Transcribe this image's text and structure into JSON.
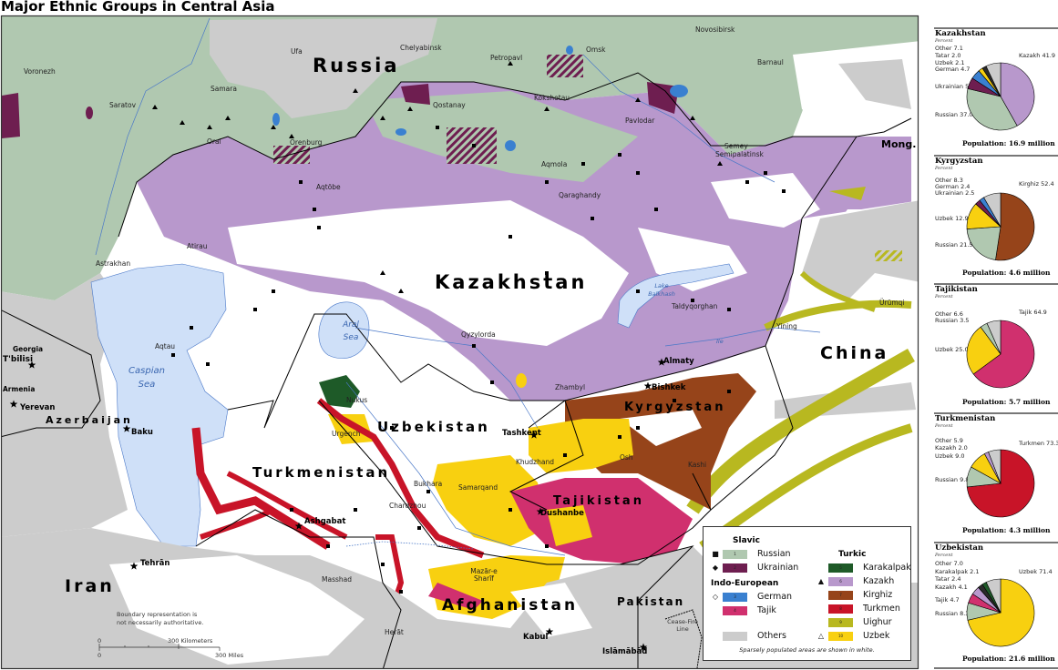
{
  "title": "Major Ethnic Groups in Central Asia",
  "colors": {
    "russian": "#b0c8b0",
    "ukrainian": "#6e1e50",
    "german": "#3a80d0",
    "tajik": "#d0306e",
    "karakalpak": "#1e5a28",
    "kazakh": "#b898cc",
    "kirghiz": "#96441a",
    "turkmen": "#c81428",
    "uighur": "#b8b820",
    "uzbek": "#f8d010",
    "others": "#cccccc",
    "tatar": "#2a2a2a",
    "water": "#cfe0f8",
    "river": "#4a78c8"
  },
  "map": {
    "countries": {
      "russia": "Russia",
      "kazakhstan": "Kazakhstan",
      "uzbekistan": "Uzbekistan",
      "turkmenistan": "Turkmenistan",
      "tajikistan": "Tajikistan",
      "kyrgyzstan": "Kyrgyzstan",
      "afghanistan": "Afghanistan",
      "china": "China",
      "iran": "Iran",
      "pakistan": "Pakistan",
      "mongolia": "Mong.",
      "azerbaijan": "Azerbaijan",
      "georgia": "Georgia",
      "armenia": "Armenia"
    },
    "cities": {
      "voronezh": "Voronezh",
      "saratov": "Saratov",
      "samara": "Samara",
      "ufa": "Ufa",
      "chelyabinsk": "Chelyabinsk",
      "novosibirsk": "Novosibirsk",
      "barnaul": "Barnaul",
      "omsk": "Omsk",
      "petropavl": "Petropavl",
      "kokshetau": "Kökshetau",
      "qostanay": "Qostanay",
      "pavlodar": "Pavlodar",
      "aqmola": "Aqmola",
      "semey": "Semey",
      "semipalatinsk": "Semipalatinsk",
      "qaraghandy": "Qaraghandy",
      "oral": "Oral",
      "orenburg": "Orenburg",
      "aqtobe": "Aqtöbe",
      "atirau": "Atirau",
      "astrakhan": "Astrakhan",
      "aqtau": "Aqtau",
      "qyzylorda": "Qyzylorda",
      "zhambyl": "Zhambyl",
      "taldyqorghan": "Taldyqorghan",
      "yining": "Yining",
      "urumqi": "Ürümqi",
      "khudzhand": "Khudzhand",
      "osh": "Osh",
      "kashi": "Kashi",
      "nukus": "Nukus",
      "urgench": "Urgench",
      "bukhara": "Bukhara",
      "samarqand": "Samarqand",
      "chardzhou": "Chardzhou",
      "mashhad": "Masshad",
      "herat": "Herāt",
      "mazar": "Mazār-e Sharīf"
    },
    "capitals": {
      "almaty": "Almaty",
      "bishkek": "Bishkek",
      "tashkent": "Tashkent",
      "dushanbe": "Dushanbe",
      "ashgabat": "Ashgabat",
      "tehran": "Tehrān",
      "kabul": "Kabul",
      "islamabad": "Islāmābād",
      "baku": "Baku",
      "yerevan": "Yerevan",
      "tbilisi": "T'bilisi"
    },
    "water": {
      "caspian": "Caspian Sea",
      "aral": "Aral Sea",
      "balkhash": "Lake Balkhash",
      "ile": "Ile"
    },
    "notes": {
      "boundary_1": "Boundary representation is",
      "boundary_2": "not necessarily authoritative.",
      "ceasefire_1": "Cease-Fire",
      "ceasefire_2": "Line"
    },
    "scale": {
      "zero": "0",
      "km": "300 Kilometers",
      "miles": "300 Miles"
    }
  },
  "legend": {
    "slavic": "Slavic",
    "indo_european": "Indo-European",
    "turkic": "Turkic",
    "items": [
      {
        "num": "1",
        "label": "Russian",
        "key": "russian",
        "marker": "■"
      },
      {
        "num": "2",
        "label": "Ukrainian",
        "key": "ukrainian",
        "marker": "◆"
      },
      {
        "num": "3",
        "label": "German",
        "key": "german",
        "marker": "◇"
      },
      {
        "num": "4",
        "label": "Tajik",
        "key": "tajik",
        "marker": ""
      },
      {
        "num": "",
        "label": "Others",
        "key": "others",
        "marker": ""
      },
      {
        "num": "5",
        "label": "Karakalpak",
        "key": "karakalpak",
        "marker": ""
      },
      {
        "num": "6",
        "label": "Kazakh",
        "key": "kazakh",
        "marker": "▲"
      },
      {
        "num": "7",
        "label": "Kirghiz",
        "key": "kirghiz",
        "marker": ""
      },
      {
        "num": "8",
        "label": "Turkmen",
        "key": "turkmen",
        "marker": ""
      },
      {
        "num": "9",
        "label": "Uighur",
        "key": "uighur",
        "marker": ""
      },
      {
        "num": "10",
        "label": "Uzbek",
        "key": "uzbek",
        "marker": "△"
      }
    ],
    "note": "Sparsely populated areas are shown in white."
  },
  "chart_data": [
    {
      "type": "pie",
      "title": "Kazakhstan",
      "unit": "Percent",
      "population": "Population: 16.9 million",
      "slices": [
        {
          "name": "Kazakh",
          "value": 41.9,
          "key": "kazakh"
        },
        {
          "name": "Russian",
          "value": 37.0,
          "key": "russian"
        },
        {
          "name": "Ukrainian",
          "value": 5.4,
          "key": "ukrainian"
        },
        {
          "name": "German",
          "value": 4.7,
          "key": "german"
        },
        {
          "name": "Uzbek",
          "value": 2.1,
          "key": "uzbek"
        },
        {
          "name": "Tatar",
          "value": 2.0,
          "key": "tatar"
        },
        {
          "name": "Other",
          "value": 7.1,
          "key": "others"
        }
      ]
    },
    {
      "type": "pie",
      "title": "Kyrgyzstan",
      "unit": "Percent",
      "population": "Population: 4.6 million",
      "slices": [
        {
          "name": "Kirghiz",
          "value": 52.4,
          "key": "kirghiz"
        },
        {
          "name": "Russian",
          "value": 21.5,
          "key": "russian"
        },
        {
          "name": "Uzbek",
          "value": 12.9,
          "key": "uzbek"
        },
        {
          "name": "Ukrainian",
          "value": 2.5,
          "key": "ukrainian"
        },
        {
          "name": "German",
          "value": 2.4,
          "key": "german"
        },
        {
          "name": "Other",
          "value": 8.3,
          "key": "others"
        }
      ]
    },
    {
      "type": "pie",
      "title": "Tajikistan",
      "unit": "Percent",
      "population": "Population: 5.7 million",
      "slices": [
        {
          "name": "Tajik",
          "value": 64.9,
          "key": "tajik"
        },
        {
          "name": "Uzbek",
          "value": 25.0,
          "key": "uzbek"
        },
        {
          "name": "Russian",
          "value": 3.5,
          "key": "russian"
        },
        {
          "name": "Other",
          "value": 6.6,
          "key": "others"
        }
      ]
    },
    {
      "type": "pie",
      "title": "Turkmenistan",
      "unit": "Percent",
      "population": "Population: 4.3 million",
      "slices": [
        {
          "name": "Turkmen",
          "value": 73.3,
          "key": "turkmen"
        },
        {
          "name": "Russian",
          "value": 9.8,
          "key": "russian"
        },
        {
          "name": "Uzbek",
          "value": 9.0,
          "key": "uzbek"
        },
        {
          "name": "Kazakh",
          "value": 2.0,
          "key": "kazakh"
        },
        {
          "name": "Other",
          "value": 5.9,
          "key": "others"
        }
      ]
    },
    {
      "type": "pie",
      "title": "Uzbekistan",
      "unit": "Percent",
      "population": "Population: 21.6 million",
      "slices": [
        {
          "name": "Uzbek",
          "value": 71.4,
          "key": "uzbek"
        },
        {
          "name": "Russian",
          "value": 8.3,
          "key": "russian"
        },
        {
          "name": "Tajik",
          "value": 4.7,
          "key": "tajik"
        },
        {
          "name": "Kazakh",
          "value": 4.1,
          "key": "kazakh"
        },
        {
          "name": "Tatar",
          "value": 2.4,
          "key": "tatar"
        },
        {
          "name": "Karakalpak",
          "value": 2.1,
          "key": "karakalpak"
        },
        {
          "name": "Other",
          "value": 7.0,
          "key": "others"
        }
      ]
    }
  ]
}
